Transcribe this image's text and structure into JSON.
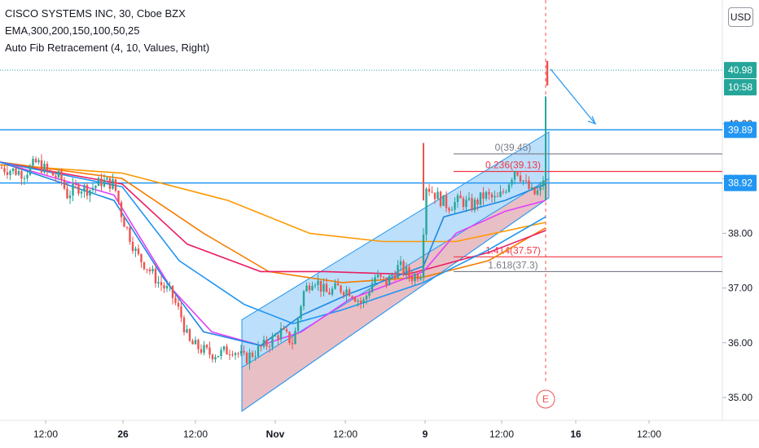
{
  "legend": {
    "title": "CISCO SYSTEMS INC, 30, Cboe BZX",
    "ema": "EMA,300,200,150,100,50,25",
    "fib": "Auto Fib Retracement (4, 10, Values, Right)"
  },
  "currency": "USD",
  "price_tags": {
    "last_price": "40.98",
    "countdown": "10:58",
    "level_upper": "39.89",
    "level_lower": "38.92"
  },
  "event_marker": "E",
  "fib_levels": [
    {
      "label": "0(39.45)",
      "price": 39.45,
      "color": "#787b86"
    },
    {
      "label": "0.236(39.13)",
      "price": 39.13,
      "color": "#f23645"
    },
    {
      "label": "1.414(37.57)",
      "price": 37.57,
      "color": "#f23645"
    },
    {
      "label": "1.618(37.3)",
      "price": 37.3,
      "color": "#787b86"
    }
  ],
  "colors": {
    "up": "#26a69a",
    "down": "#ef5350",
    "horizontal_line": "#2196f3",
    "channel_upper_fill": "#90caf9",
    "channel_lower_fill": "#f8b4b4",
    "ema_colors": [
      "#ff9800",
      "#f57c00",
      "#e91e63",
      "#9c27b0",
      "#2196f3",
      "#e040fb"
    ]
  },
  "chart_data": {
    "type": "candlestick",
    "title": "CISCO SYSTEMS INC, 30, Cboe BZX",
    "y_ticks": [
      35.0,
      36.0,
      37.0,
      38.0,
      39.0,
      40.0
    ],
    "ylim": [
      34.75,
      41.75
    ],
    "x_ticks": [
      "12:00",
      "26",
      "12:00",
      "Nov",
      "12:00",
      "9",
      "12:00",
      "16",
      "12:00"
    ],
    "horizontal_levels": [
      39.89,
      38.92
    ],
    "last_price": 40.98,
    "price_path": [
      [
        0,
        39.2
      ],
      [
        15,
        39.15
      ],
      [
        30,
        39.1
      ],
      [
        45,
        39.3
      ],
      [
        60,
        39.1
      ],
      [
        75,
        39.0
      ],
      [
        82,
        38.7
      ],
      [
        95,
        38.85
      ],
      [
        110,
        38.8
      ],
      [
        125,
        38.95
      ],
      [
        140,
        38.9
      ],
      [
        150,
        38.3
      ],
      [
        158,
        38.0
      ],
      [
        168,
        37.6
      ],
      [
        180,
        37.4
      ],
      [
        195,
        37.1
      ],
      [
        210,
        36.9
      ],
      [
        222,
        36.5
      ],
      [
        232,
        36.0
      ],
      [
        245,
        35.9
      ],
      [
        258,
        35.8
      ],
      [
        270,
        35.8
      ],
      [
        285,
        35.9
      ],
      [
        300,
        35.7
      ],
      [
        315,
        35.85
      ],
      [
        330,
        36.0
      ],
      [
        345,
        36.2
      ],
      [
        360,
        36.0
      ],
      [
        372,
        36.9
      ],
      [
        385,
        37.2
      ],
      [
        400,
        36.9
      ],
      [
        415,
        37.0
      ],
      [
        430,
        36.95
      ],
      [
        445,
        36.7
      ],
      [
        460,
        37.2
      ],
      [
        475,
        37.1
      ],
      [
        490,
        37.4
      ],
      [
        505,
        37.2
      ],
      [
        518,
        37.3
      ],
      [
        522,
        38.9
      ],
      [
        535,
        38.7
      ],
      [
        550,
        38.5
      ],
      [
        565,
        38.6
      ],
      [
        580,
        38.5
      ],
      [
        595,
        38.7
      ],
      [
        610,
        38.6
      ],
      [
        620,
        38.8
      ],
      [
        633,
        39.2
      ],
      [
        645,
        38.9
      ],
      [
        655,
        38.7
      ],
      [
        665,
        38.8
      ],
      [
        670,
        39.3
      ],
      [
        672,
        40.98
      ]
    ],
    "series": [
      {
        "name": "EMA 300",
        "color": "#ff9800",
        "values": [
          [
            0,
            39.25
          ],
          [
            150,
            39.1
          ],
          [
            280,
            38.6
          ],
          [
            380,
            38.0
          ],
          [
            470,
            37.85
          ],
          [
            560,
            37.85
          ],
          [
            670,
            38.2
          ]
        ]
      },
      {
        "name": "EMA 200",
        "color": "#f57c00",
        "values": [
          [
            0,
            39.3
          ],
          [
            150,
            39.0
          ],
          [
            250,
            38.0
          ],
          [
            330,
            37.3
          ],
          [
            420,
            37.1
          ],
          [
            520,
            37.2
          ],
          [
            600,
            37.5
          ],
          [
            670,
            38.1
          ]
        ]
      },
      {
        "name": "EMA 150",
        "color": "#e91e63",
        "values": [
          [
            0,
            39.3
          ],
          [
            150,
            38.9
          ],
          [
            230,
            37.8
          ],
          [
            320,
            37.3
          ],
          [
            400,
            37.3
          ],
          [
            500,
            37.25
          ],
          [
            600,
            37.65
          ],
          [
            670,
            38.05
          ]
        ]
      },
      {
        "name": "EMA 100",
        "color": "#2196f3",
        "values": [
          [
            0,
            39.3
          ],
          [
            150,
            38.85
          ],
          [
            220,
            37.5
          ],
          [
            300,
            36.7
          ],
          [
            360,
            36.35
          ],
          [
            420,
            36.6
          ],
          [
            520,
            37.1
          ],
          [
            600,
            37.7
          ],
          [
            670,
            38.3
          ]
        ]
      },
      {
        "name": "EMA 50",
        "color": "#e040fb",
        "values": [
          [
            0,
            39.3
          ],
          [
            140,
            38.7
          ],
          [
            210,
            37.0
          ],
          [
            260,
            36.2
          ],
          [
            320,
            35.95
          ],
          [
            370,
            36.2
          ],
          [
            430,
            36.8
          ],
          [
            520,
            37.3
          ],
          [
            560,
            38.0
          ],
          [
            620,
            38.4
          ],
          [
            670,
            38.6
          ]
        ]
      },
      {
        "name": "EMA 25",
        "color": "#1e88e5",
        "values": [
          [
            0,
            39.3
          ],
          [
            140,
            38.6
          ],
          [
            200,
            37.2
          ],
          [
            250,
            36.2
          ],
          [
            320,
            35.95
          ],
          [
            370,
            36.5
          ],
          [
            430,
            36.9
          ],
          [
            520,
            37.4
          ],
          [
            545,
            38.3
          ],
          [
            620,
            38.6
          ],
          [
            670,
            38.9
          ]
        ]
      }
    ],
    "grid": false,
    "legend": "top-left"
  }
}
